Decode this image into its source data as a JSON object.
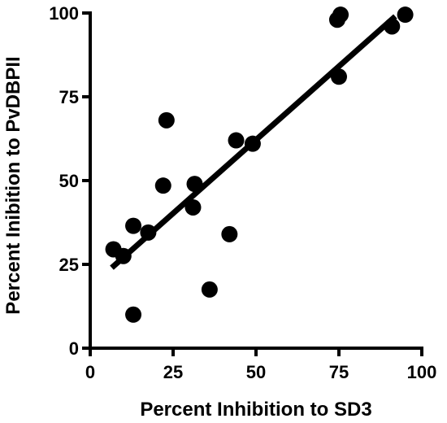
{
  "chart_data": {
    "type": "scatter",
    "title": "",
    "xlabel": "Percent Inhibition to SD3",
    "ylabel": "Percent Inibition to PvDBPII",
    "xlim": [
      0,
      100
    ],
    "ylim": [
      0,
      100
    ],
    "xticks": [
      "0",
      "25",
      "50",
      "75",
      "100"
    ],
    "yticks": [
      "0",
      "25",
      "50",
      "75",
      "100"
    ],
    "grid": false,
    "legend": "none",
    "marker_color": "#000000",
    "points": [
      {
        "x": 7,
        "y": 29.5
      },
      {
        "x": 10,
        "y": 27.5
      },
      {
        "x": 13,
        "y": 36.5
      },
      {
        "x": 13,
        "y": 10
      },
      {
        "x": 17.5,
        "y": 34.5
      },
      {
        "x": 22,
        "y": 48.5
      },
      {
        "x": 23,
        "y": 68
      },
      {
        "x": 31,
        "y": 42
      },
      {
        "x": 31.5,
        "y": 49
      },
      {
        "x": 36,
        "y": 17.5
      },
      {
        "x": 42,
        "y": 34
      },
      {
        "x": 44,
        "y": 62
      },
      {
        "x": 49,
        "y": 61
      },
      {
        "x": 74.5,
        "y": 98
      },
      {
        "x": 75.5,
        "y": 99.5
      },
      {
        "x": 75,
        "y": 81
      },
      {
        "x": 91,
        "y": 96
      },
      {
        "x": 95,
        "y": 99.5
      }
    ],
    "fit_line": {
      "x": [
        6.5,
        92
      ],
      "y": [
        24,
        99
      ]
    }
  }
}
